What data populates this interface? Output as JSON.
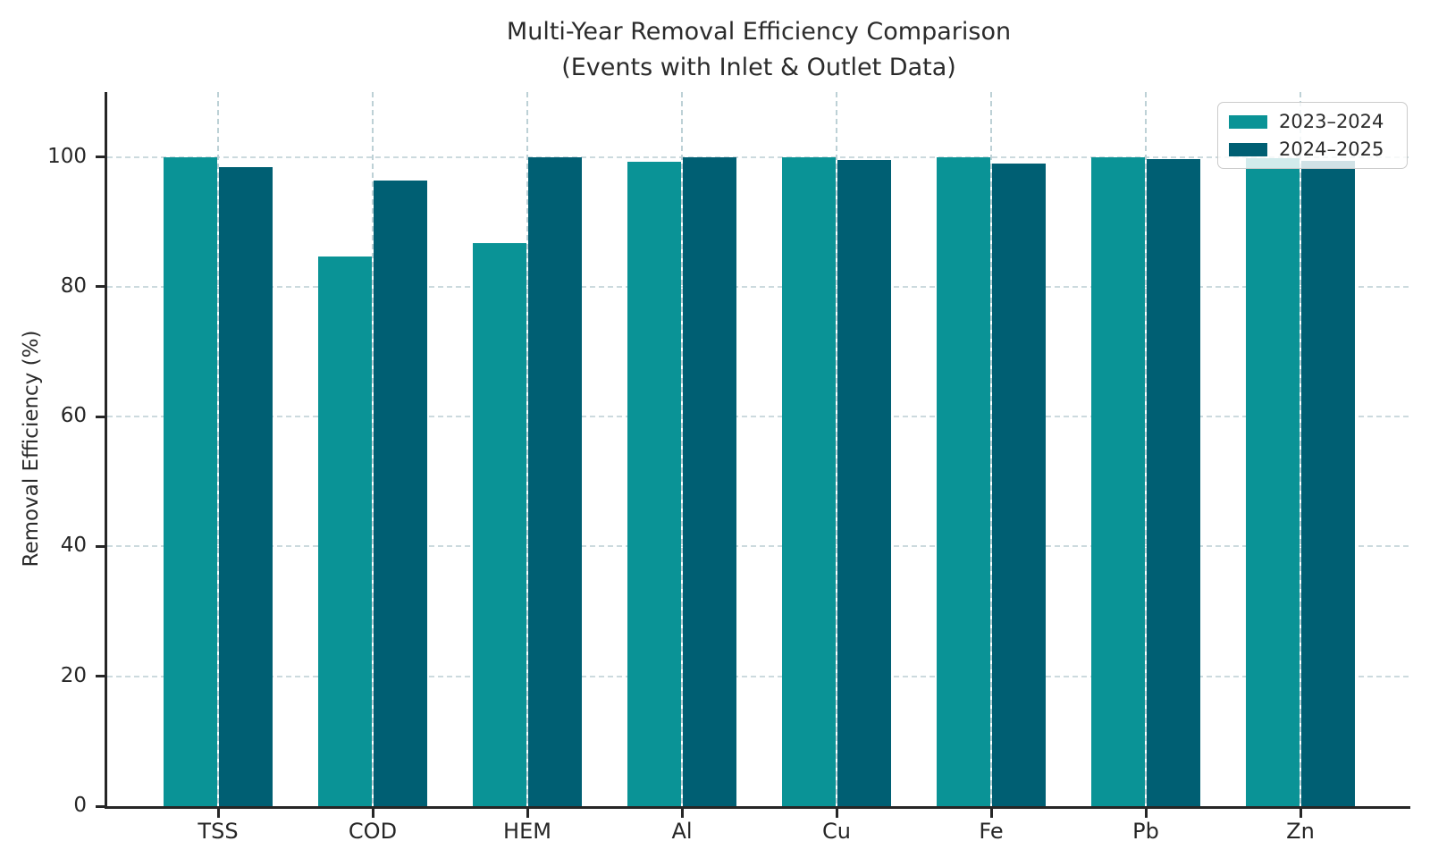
{
  "chart_data": {
    "type": "bar",
    "title": "Multi-Year Removal Efficiency Comparison",
    "subtitle": "(Events with Inlet & Outlet Data)",
    "xlabel": "",
    "ylabel": "Removal Efficiency (%)",
    "categories": [
      "TSS",
      "COD",
      "HEM",
      "Al",
      "Cu",
      "Fe",
      "Pb",
      "Zn"
    ],
    "series": [
      {
        "name": "2023–2024",
        "color": "#0a9396",
        "values": [
          100.0,
          84.7,
          86.7,
          99.3,
          99.9,
          99.9,
          100.0,
          99.8
        ]
      },
      {
        "name": "2024–2025",
        "color": "#005f73",
        "values": [
          98.4,
          96.4,
          100.0,
          99.9,
          99.6,
          99.0,
          99.7,
          99.4
        ]
      }
    ],
    "ylim": [
      0,
      110
    ],
    "yticks": [
      0,
      20,
      40,
      60,
      80,
      100
    ],
    "ytick_labels": [
      "0",
      "20",
      "40",
      "60",
      "80",
      "100"
    ],
    "grid": "dashed gridlines, horizontal at y ticks and vertical at category centers",
    "legend_position": "upper right",
    "axis_color": "#262626",
    "grid_color": "#c3d6da"
  }
}
